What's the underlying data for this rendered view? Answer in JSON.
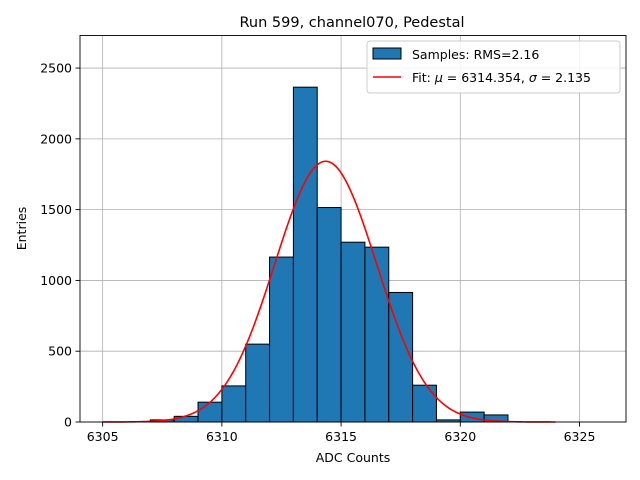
{
  "chart_data": {
    "type": "bar",
    "title": "Run 599, channel070, Pedestal",
    "xlabel": "ADC Counts",
    "ylabel": "Entries",
    "xlim": [
      6304.05,
      6326.95
    ],
    "ylim": [
      0,
      2730
    ],
    "xticks": [
      6305,
      6310,
      6315,
      6320,
      6325
    ],
    "yticks": [
      0,
      500,
      1000,
      1500,
      2000,
      2500
    ],
    "grid": true,
    "legend_position": "top-right",
    "histogram": {
      "name": "Samples: RMS=2.16",
      "color": "#1f77b4",
      "edgecolor": "#000000",
      "bins": [
        {
          "x0": 6307,
          "x1": 6308,
          "value": 15
        },
        {
          "x0": 6308,
          "x1": 6309,
          "value": 40
        },
        {
          "x0": 6309,
          "x1": 6310,
          "value": 140
        },
        {
          "x0": 6310,
          "x1": 6311,
          "value": 255
        },
        {
          "x0": 6311,
          "x1": 6312,
          "value": 550
        },
        {
          "x0": 6312,
          "x1": 6313,
          "value": 1165
        },
        {
          "x0": 6313,
          "x1": 6314,
          "value": 2365
        },
        {
          "x0": 6314,
          "x1": 6315,
          "value": 1515
        },
        {
          "x0": 6315,
          "x1": 6316,
          "value": 1270
        },
        {
          "x0": 6316,
          "x1": 6317,
          "value": 1235
        },
        {
          "x0": 6317,
          "x1": 6318,
          "value": 915
        },
        {
          "x0": 6318,
          "x1": 6319,
          "value": 260
        },
        {
          "x0": 6319,
          "x1": 6320,
          "value": 15
        },
        {
          "x0": 6320,
          "x1": 6321,
          "value": 70
        },
        {
          "x0": 6321,
          "x1": 6322,
          "value": 50
        }
      ]
    },
    "fit": {
      "label_prefix": "Fit: ",
      "mu_symbol": "μ",
      "mu_text": " = 6314.354, ",
      "sigma_symbol": "σ",
      "sigma_text": " = 2.135",
      "color": "#ff0000",
      "mu": 6314.354,
      "sigma": 2.135,
      "amplitude": 1842,
      "x_range": [
        6305,
        6324
      ]
    }
  }
}
